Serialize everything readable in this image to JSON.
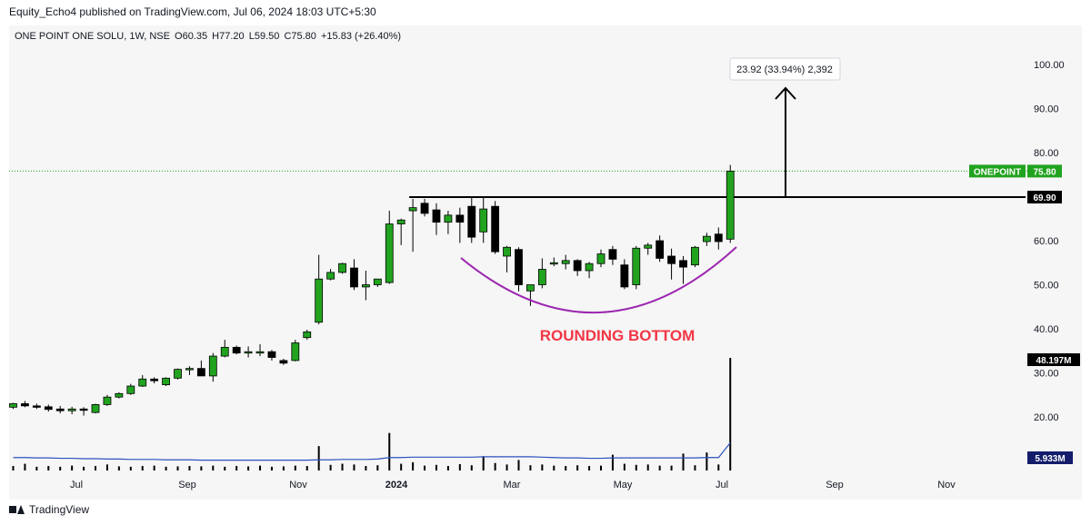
{
  "header": {
    "publisher_line": "Equity_Echo4 published on TradingView.com, Jul 06, 2024 18:03 UTC+5:30"
  },
  "legend": {
    "symbol": "ONE POINT ONE SOLU, 1W, NSE",
    "open": "O60.35",
    "high": "H77.20",
    "low": "L59.50",
    "close": "C75.80",
    "change": "+15.83 (+26.40%)"
  },
  "footer": {
    "brand": "TradingView"
  },
  "colors": {
    "up": "#22a31f",
    "down": "#000000",
    "volume": "#000000",
    "volume_ma": "#2a52be",
    "curve": "#9c27b0",
    "annotation_text": "#f23645",
    "price_tag_green": "#22a31f",
    "price_tag_black": "#000000",
    "volume_tag": "#131d6b"
  },
  "chart_data": {
    "type": "candlestick",
    "x_ticks": [
      "Jul",
      "Sep",
      "Nov",
      "2024",
      "Mar",
      "May",
      "Jul",
      "Sep",
      "Nov"
    ],
    "y_ticks": [
      "100.00",
      "90.00",
      "80.00",
      "70.00",
      "60.00",
      "50.00",
      "40.00",
      "30.00",
      "20.00"
    ],
    "ylim": [
      10,
      105
    ],
    "candles": [
      {
        "o": 22.2,
        "h": 23.2,
        "l": 21.8,
        "c": 23.0
      },
      {
        "o": 23.0,
        "h": 23.6,
        "l": 22.2,
        "c": 22.5
      },
      {
        "o": 22.5,
        "h": 23.0,
        "l": 21.8,
        "c": 22.3
      },
      {
        "o": 22.3,
        "h": 22.8,
        "l": 21.2,
        "c": 21.7
      },
      {
        "o": 21.8,
        "h": 22.5,
        "l": 20.8,
        "c": 21.4
      },
      {
        "o": 21.4,
        "h": 22.3,
        "l": 20.6,
        "c": 21.8
      },
      {
        "o": 21.8,
        "h": 22.2,
        "l": 20.3,
        "c": 21.6
      },
      {
        "o": 21.0,
        "h": 23.0,
        "l": 20.8,
        "c": 22.8
      },
      {
        "o": 22.8,
        "h": 25.0,
        "l": 22.5,
        "c": 24.5
      },
      {
        "o": 24.5,
        "h": 25.6,
        "l": 24.2,
        "c": 25.3
      },
      {
        "o": 25.3,
        "h": 27.5,
        "l": 25.0,
        "c": 27.0
      },
      {
        "o": 27.0,
        "h": 29.5,
        "l": 26.8,
        "c": 28.6
      },
      {
        "o": 28.6,
        "h": 29.0,
        "l": 27.6,
        "c": 28.2
      },
      {
        "o": 27.3,
        "h": 29.0,
        "l": 27.0,
        "c": 28.8
      },
      {
        "o": 28.8,
        "h": 31.0,
        "l": 28.5,
        "c": 30.8
      },
      {
        "o": 30.8,
        "h": 31.5,
        "l": 29.5,
        "c": 31.0
      },
      {
        "o": 31.0,
        "h": 32.8,
        "l": 29.8,
        "c": 29.3
      },
      {
        "o": 29.3,
        "h": 34.5,
        "l": 28.0,
        "c": 33.8
      },
      {
        "o": 33.8,
        "h": 37.5,
        "l": 33.5,
        "c": 35.8
      },
      {
        "o": 35.8,
        "h": 36.2,
        "l": 34.2,
        "c": 34.5
      },
      {
        "o": 34.5,
        "h": 36.0,
        "l": 33.5,
        "c": 34.8
      },
      {
        "o": 34.8,
        "h": 36.5,
        "l": 33.8,
        "c": 34.8
      },
      {
        "o": 34.8,
        "h": 35.2,
        "l": 32.8,
        "c": 33.5
      },
      {
        "o": 32.8,
        "h": 33.2,
        "l": 31.8,
        "c": 32.2
      },
      {
        "o": 32.8,
        "h": 37.5,
        "l": 32.6,
        "c": 36.8
      },
      {
        "o": 38.0,
        "h": 39.8,
        "l": 37.5,
        "c": 39.3
      },
      {
        "o": 41.5,
        "h": 56.8,
        "l": 41.0,
        "c": 51.3
      },
      {
        "o": 51.3,
        "h": 53.6,
        "l": 51.0,
        "c": 52.8
      },
      {
        "o": 52.8,
        "h": 55.0,
        "l": 52.5,
        "c": 54.8
      },
      {
        "o": 53.8,
        "h": 55.8,
        "l": 48.8,
        "c": 49.5
      },
      {
        "o": 49.5,
        "h": 53.2,
        "l": 46.5,
        "c": 50.0
      },
      {
        "o": 50.0,
        "h": 51.3,
        "l": 49.5,
        "c": 51.3
      },
      {
        "o": 50.5,
        "h": 66.8,
        "l": 50.2,
        "c": 63.8
      },
      {
        "o": 63.8,
        "h": 65.0,
        "l": 59.0,
        "c": 64.7
      },
      {
        "o": 66.8,
        "h": 69.5,
        "l": 57.5,
        "c": 67.5
      },
      {
        "o": 68.5,
        "h": 69.5,
        "l": 65.5,
        "c": 66.2
      },
      {
        "o": 67.0,
        "h": 68.5,
        "l": 61.3,
        "c": 64.2
      },
      {
        "o": 64.2,
        "h": 66.8,
        "l": 61.5,
        "c": 65.8
      },
      {
        "o": 65.8,
        "h": 67.5,
        "l": 59.5,
        "c": 64.2
      },
      {
        "o": 67.8,
        "h": 69.8,
        "l": 59.5,
        "c": 60.8
      },
      {
        "o": 62.0,
        "h": 69.9,
        "l": 59.5,
        "c": 67.2
      },
      {
        "o": 67.8,
        "h": 69.0,
        "l": 57.0,
        "c": 57.5
      },
      {
        "o": 56.5,
        "h": 58.8,
        "l": 52.8,
        "c": 58.5
      },
      {
        "o": 58.0,
        "h": 58.5,
        "l": 48.5,
        "c": 50.0
      },
      {
        "o": 48.6,
        "h": 50.0,
        "l": 45.2,
        "c": 50.0
      },
      {
        "o": 50.0,
        "h": 56.0,
        "l": 49.2,
        "c": 53.5
      },
      {
        "o": 54.8,
        "h": 56.2,
        "l": 54.2,
        "c": 55.0
      },
      {
        "o": 54.8,
        "h": 56.8,
        "l": 53.5,
        "c": 55.5
      },
      {
        "o": 55.5,
        "h": 55.8,
        "l": 52.0,
        "c": 53.2
      },
      {
        "o": 53.2,
        "h": 55.2,
        "l": 51.5,
        "c": 54.8
      },
      {
        "o": 54.8,
        "h": 58.0,
        "l": 54.0,
        "c": 57.0
      },
      {
        "o": 58.0,
        "h": 58.8,
        "l": 54.5,
        "c": 55.8
      },
      {
        "o": 54.5,
        "h": 55.8,
        "l": 49.0,
        "c": 49.5
      },
      {
        "o": 50.0,
        "h": 58.8,
        "l": 49.0,
        "c": 58.3
      },
      {
        "o": 58.3,
        "h": 59.5,
        "l": 56.8,
        "c": 59.0
      },
      {
        "o": 60.0,
        "h": 61.2,
        "l": 55.2,
        "c": 56.0
      },
      {
        "o": 56.5,
        "h": 58.2,
        "l": 51.2,
        "c": 54.8
      },
      {
        "o": 55.5,
        "h": 56.5,
        "l": 50.2,
        "c": 54.0
      },
      {
        "o": 54.5,
        "h": 58.8,
        "l": 54.0,
        "c": 58.5
      },
      {
        "o": 59.8,
        "h": 61.8,
        "l": 58.8,
        "c": 61.0
      },
      {
        "o": 61.5,
        "h": 63.0,
        "l": 58.0,
        "c": 59.8
      },
      {
        "o": 60.35,
        "h": 77.2,
        "l": 59.5,
        "c": 75.8
      }
    ],
    "volume_axis": {
      "min": 0,
      "max": 25
    },
    "volume": [
      1.2,
      1.8,
      1.0,
      1.2,
      1.0,
      1.3,
      1.0,
      1.2,
      1.6,
      1.1,
      1.0,
      1.2,
      1.3,
      1.0,
      1.1,
      1.2,
      1.1,
      1.3,
      1.0,
      1.2,
      1.1,
      1.3,
      1.0,
      1.1,
      1.3,
      1.2,
      6.5,
      1.5,
      1.8,
      1.6,
      1.2,
      1.4,
      10.0,
      1.8,
      2.2,
      1.3,
      1.5,
      1.2,
      1.7,
      1.4,
      3.8,
      2.0,
      1.6,
      2.8,
      1.4,
      1.6,
      1.3,
      1.2,
      1.4,
      1.2,
      1.3,
      4.2,
      1.8,
      1.5,
      1.6,
      1.3,
      1.3,
      4.5,
      1.4,
      4.8,
      1.6,
      48.197
    ],
    "volume_ma": [
      2.0,
      2.0,
      1.9,
      1.9,
      1.8,
      1.8,
      1.7,
      1.7,
      1.6,
      1.6,
      1.5,
      1.5,
      1.5,
      1.4,
      1.4,
      1.4,
      1.3,
      1.3,
      1.3,
      1.3,
      1.3,
      1.3,
      1.3,
      1.3,
      1.3,
      1.3,
      1.4,
      1.4,
      1.5,
      1.5,
      1.5,
      1.6,
      2.0,
      2.0,
      2.1,
      2.1,
      2.1,
      2.1,
      2.1,
      2.1,
      2.2,
      2.2,
      2.2,
      2.2,
      2.2,
      2.1,
      2.0,
      1.9,
      1.9,
      1.8,
      1.8,
      1.9,
      1.9,
      1.9,
      1.9,
      1.9,
      1.9,
      1.9,
      1.9,
      2.0,
      2.0,
      5.933
    ],
    "resistance_level": 69.9,
    "last_price": 75.8,
    "price_tags": [
      {
        "label": "ONEPOINT",
        "value": "75.80"
      },
      {
        "label": "",
        "value": "69.90"
      }
    ],
    "volume_tags": [
      "48.197M",
      "5.933M"
    ],
    "measurement_label": "23.92 (33.94%) 2,392",
    "annotation": "ROUNDING BOTTOM"
  }
}
